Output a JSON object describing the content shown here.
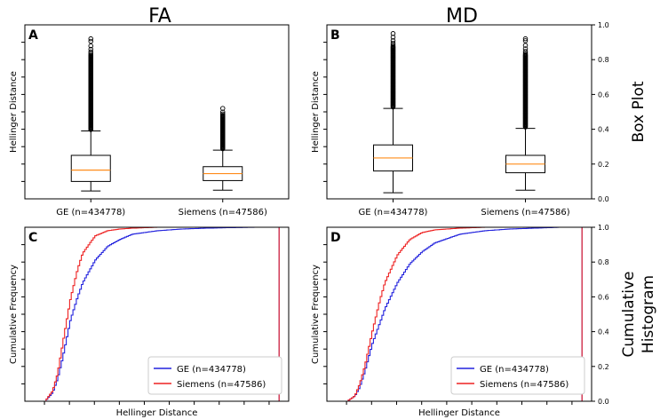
{
  "figure": {
    "col_titles": [
      "FA",
      "MD"
    ],
    "row_titles": [
      "Box Plot",
      "Cumulative Histogram"
    ],
    "row_title_lines": [
      [
        "Box Plot"
      ],
      [
        "Cumulative",
        "Histogram"
      ]
    ],
    "right_axis_ticks": [
      "0.0",
      "0.2",
      "0.4",
      "0.6",
      "0.8",
      "1.0"
    ]
  },
  "colors": {
    "ge": "#2222dd",
    "siemens": "#ee2222",
    "median": "#ff8c1a",
    "axis": "#000000"
  },
  "chart_data": [
    {
      "panel": "A",
      "type": "box",
      "column": "FA",
      "title": "",
      "xlabel": "",
      "ylabel": "Hellinger Distance",
      "ylim": [
        0,
        1
      ],
      "categories": [
        "GE (n=434778)",
        "Siemens (n=47586)"
      ],
      "boxes": [
        {
          "whisker_low": 0.045,
          "q1": 0.1,
          "median": 0.165,
          "q3": 0.25,
          "whisker_high": 0.39,
          "outlier_max": 0.92
        },
        {
          "whisker_low": 0.05,
          "q1": 0.105,
          "median": 0.145,
          "q3": 0.185,
          "whisker_high": 0.28,
          "outlier_max": 0.52
        }
      ]
    },
    {
      "panel": "B",
      "type": "box",
      "column": "MD",
      "title": "",
      "xlabel": "",
      "ylabel": "Hellinger Distance",
      "ylim": [
        0,
        1
      ],
      "categories": [
        "GE (n=434778)",
        "Siemens (n=47586)"
      ],
      "boxes": [
        {
          "whisker_low": 0.035,
          "q1": 0.16,
          "median": 0.235,
          "q3": 0.31,
          "whisker_high": 0.52,
          "outlier_max": 0.95
        },
        {
          "whisker_low": 0.05,
          "q1": 0.15,
          "median": 0.2,
          "q3": 0.25,
          "whisker_high": 0.405,
          "outlier_max": 0.92
        }
      ]
    },
    {
      "panel": "C",
      "type": "line",
      "column": "FA",
      "title": "",
      "xlabel": "Hellinger Distance",
      "ylabel": "Cumulative Frequency",
      "ylim": [
        0,
        1
      ],
      "xlim": [
        0,
        1
      ],
      "x": [
        0.05,
        0.08,
        0.1,
        0.12,
        0.15,
        0.18,
        0.2,
        0.25,
        0.3,
        0.35,
        0.4,
        0.5,
        0.6,
        0.7,
        0.8,
        0.9,
        0.99
      ],
      "series": [
        {
          "name": "GE (n=434778)",
          "values": [
            0.0,
            0.05,
            0.13,
            0.25,
            0.46,
            0.6,
            0.68,
            0.81,
            0.89,
            0.93,
            0.96,
            0.98,
            0.99,
            0.995,
            0.998,
            1.0,
            1.0
          ]
        },
        {
          "name": "Siemens (n=47586)",
          "values": [
            0.0,
            0.06,
            0.16,
            0.33,
            0.58,
            0.76,
            0.85,
            0.95,
            0.98,
            0.99,
            0.995,
            1.0,
            1.0,
            1.0,
            1.0,
            1.0,
            1.0
          ]
        }
      ],
      "legend": "lower-right"
    },
    {
      "panel": "D",
      "type": "line",
      "column": "MD",
      "title": "",
      "xlabel": "Hellinger Distance",
      "ylabel": "Cumulative Frequency",
      "ylim": [
        0,
        1
      ],
      "xlim": [
        0,
        1
      ],
      "x": [
        0.05,
        0.08,
        0.1,
        0.12,
        0.15,
        0.18,
        0.2,
        0.25,
        0.3,
        0.35,
        0.4,
        0.5,
        0.6,
        0.7,
        0.8,
        0.9,
        0.99
      ],
      "series": [
        {
          "name": "GE (n=434778)",
          "values": [
            0.0,
            0.03,
            0.08,
            0.17,
            0.33,
            0.45,
            0.53,
            0.68,
            0.79,
            0.86,
            0.91,
            0.96,
            0.98,
            0.99,
            0.995,
            1.0,
            1.0
          ]
        },
        {
          "name": "Siemens (n=47586)",
          "values": [
            0.0,
            0.03,
            0.1,
            0.2,
            0.4,
            0.58,
            0.68,
            0.84,
            0.93,
            0.97,
            0.985,
            0.995,
            1.0,
            1.0,
            1.0,
            1.0,
            1.0
          ]
        }
      ],
      "legend": "lower-right"
    }
  ]
}
